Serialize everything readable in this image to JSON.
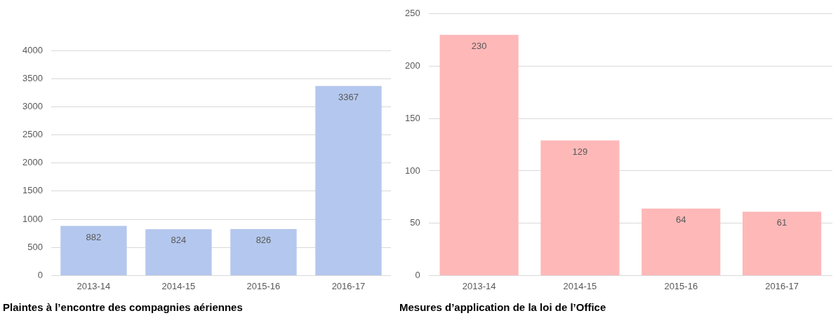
{
  "chart_data": [
    {
      "type": "bar",
      "title": "Plaintes à l’encontre des compagnies aériennes",
      "categories": [
        "2013-14",
        "2014-15",
        "2015-16",
        "2016-17"
      ],
      "values": [
        882,
        824,
        826,
        3367
      ],
      "color": "#b4c7ee",
      "ylim": [
        0,
        4000
      ],
      "yticks": [
        0,
        500,
        1000,
        1500,
        2000,
        2500,
        3000,
        3500,
        4000
      ],
      "grid": "y",
      "data_labels": true
    },
    {
      "type": "bar",
      "title": "Mesures d’application de la loi de l’Office",
      "categories": [
        "2013-14",
        "2014-15",
        "2015-16",
        "2016-17"
      ],
      "values": [
        230,
        129,
        64,
        61
      ],
      "color": "#ffb8b8",
      "ylim": [
        0,
        250
      ],
      "yticks": [
        0,
        50,
        100,
        150,
        200,
        250
      ],
      "grid": "y",
      "data_labels": true
    }
  ]
}
